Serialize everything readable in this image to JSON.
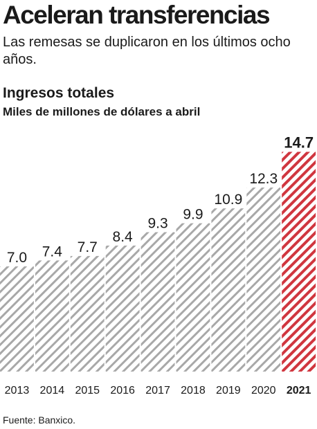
{
  "header": {
    "title": "Aceleran transferencias",
    "subtitle": "Las remesas se duplicaron en los últimos ocho años."
  },
  "chart_data": {
    "type": "bar",
    "title": "Ingresos totales",
    "ylabel": "Miles de millones de dólares a abril",
    "categories": [
      "2013",
      "2014",
      "2015",
      "2016",
      "2017",
      "2018",
      "2019",
      "2020",
      "2021"
    ],
    "values": [
      7.0,
      7.4,
      7.7,
      8.4,
      9.3,
      9.9,
      10.9,
      12.3,
      14.7
    ],
    "value_labels": [
      "7.0",
      "7.4",
      "7.7",
      "8.4",
      "9.3",
      "9.9",
      "10.9",
      "12.3",
      "14.7"
    ],
    "highlight": "2021",
    "colors": {
      "default": "#a8a8a8",
      "highlight": "#d0363f",
      "background": "#ffffff"
    },
    "fill_pattern": "diagonal-hatch",
    "grid": false
  },
  "source": "Fuente: Banxico."
}
